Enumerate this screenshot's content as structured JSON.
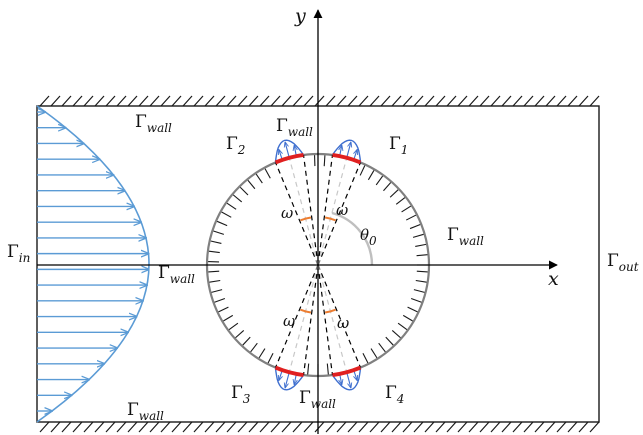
{
  "symbol_gamma": "Γ",
  "axes": {
    "x_label": "x",
    "y_label": "y"
  },
  "labels": {
    "wall_sub": "wall",
    "in_sub": "in",
    "out_sub": "out",
    "g1_sub": "1",
    "g2_sub": "2",
    "g3_sub": "3",
    "g4_sub": "4",
    "theta_symbol": "θ",
    "theta_sub": "0",
    "omega": "ω"
  },
  "colors": {
    "outline": "#1a1a1a",
    "inflow": "#5b9bd5",
    "jet_arc": "#e02020",
    "jet_profile": "#3f6fcf",
    "circle": "#808080",
    "omega_bracket": "#ed7d31",
    "theta_arc": "#bfbfbf"
  },
  "diagram": {
    "cylinder_angles_deg": [
      {
        "name": "Γ1",
        "center": 75,
        "half_width": 7.5
      },
      {
        "name": "Γ2",
        "center": 105,
        "half_width": 7.5
      },
      {
        "name": "Γ3",
        "center": 255,
        "half_width": 7.5
      },
      {
        "name": "Γ4",
        "center": 285,
        "half_width": 7.5
      }
    ],
    "inflow_profile": "parabolic",
    "inflow_arrow_count": 20
  }
}
